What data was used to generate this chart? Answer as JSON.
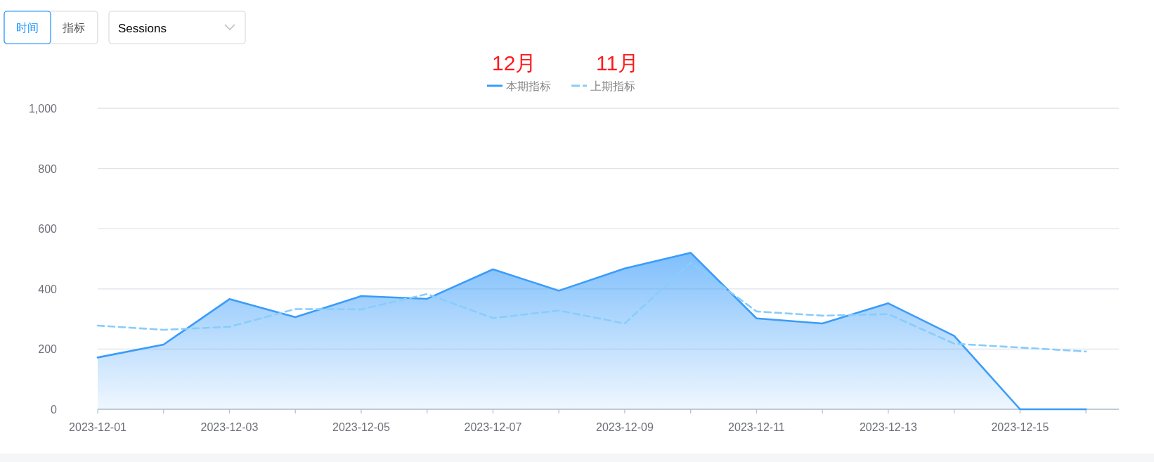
{
  "chart_data": {
    "type": "line",
    "categories": [
      "2023-12-01",
      null,
      "2023-12-03",
      null,
      "2023-12-05",
      null,
      "2023-12-07",
      null,
      "2023-12-09",
      null,
      "2023-12-11",
      null,
      "2023-12-13",
      null,
      "2023-12-15",
      null
    ],
    "series": [
      {
        "name": "本期指标",
        "type": "area",
        "color": "#3a9cfa",
        "line_style": "solid",
        "values": [
          172,
          215,
          366,
          306,
          376,
          367,
          465,
          394,
          468,
          520,
          302,
          285,
          352,
          244,
          0,
          0
        ]
      },
      {
        "name": "上期指标",
        "color": "#88cdfb",
        "line_style": "dashed",
        "values": [
          278,
          264,
          274,
          333,
          332,
          383,
          303,
          328,
          285,
          487,
          325,
          311,
          316,
          218,
          205,
          192
        ]
      }
    ],
    "ylim": [
      0,
      1000
    ],
    "yticks": [
      0,
      200,
      400,
      600,
      800,
      {
        "value": 1000,
        "label": "1,000"
      }
    ],
    "grid": "y",
    "legend": "top",
    "annotations": [
      "时间",
      "指标",
      "Sessions",
      "12月",
      "11月"
    ]
  }
}
